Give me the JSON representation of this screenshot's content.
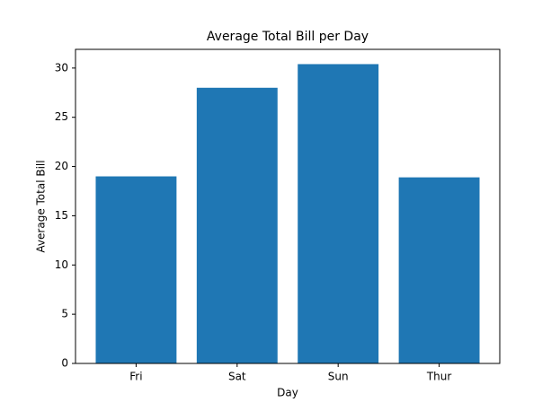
{
  "chart_data": {
    "type": "bar",
    "title": "Average Total Bill per Day",
    "x_label": "Day",
    "y_label": "Average Total Bill",
    "categories": [
      "Fri",
      "Sat",
      "Sun",
      "Thur"
    ],
    "values": [
      19.0,
      28.0,
      30.4,
      18.9
    ],
    "color": "#1f77b4",
    "ylim": [
      0,
      31.9
    ],
    "yticks": [
      0,
      5,
      10,
      15,
      20,
      25,
      30
    ],
    "grid": false
  }
}
